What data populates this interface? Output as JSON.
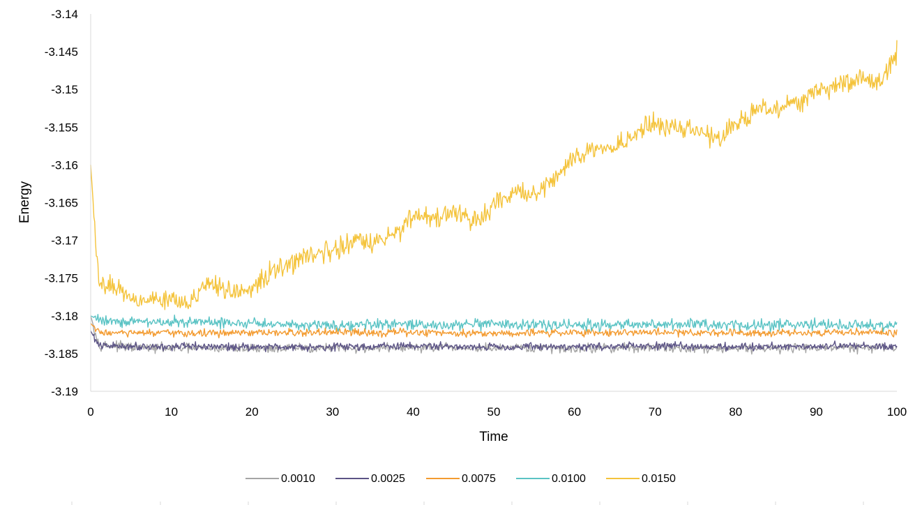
{
  "chart_data": {
    "type": "line",
    "title": "",
    "xlabel": "Time",
    "ylabel": "Energy",
    "xlim": [
      0,
      100
    ],
    "ylim": [
      -3.19,
      -3.14
    ],
    "x_ticks": [
      "0",
      "10",
      "20",
      "30",
      "40",
      "50",
      "60",
      "70",
      "80",
      "90",
      "100"
    ],
    "y_ticks": [
      "-3.14",
      "-3.145",
      "-3.15",
      "-3.155",
      "-3.16",
      "-3.165",
      "-3.17",
      "-3.175",
      "-3.18",
      "-3.185",
      "-3.19"
    ],
    "grid": false,
    "legend_position": "bottom",
    "series": [
      {
        "name": "0.0010",
        "color": "#a5a5a5",
        "x": [
          0,
          1,
          5,
          10,
          20,
          30,
          40,
          50,
          60,
          70,
          80,
          90,
          100
        ],
        "y": [
          -3.18,
          -3.1838,
          -3.1842,
          -3.1843,
          -3.1843,
          -3.1843,
          -3.1842,
          -3.1843,
          -3.1843,
          -3.1842,
          -3.1843,
          -3.1842,
          -3.1843
        ],
        "noise": 0.0006
      },
      {
        "name": "0.0025",
        "color": "#5b5385",
        "x": [
          0,
          1,
          5,
          10,
          20,
          30,
          40,
          50,
          60,
          70,
          80,
          90,
          100
        ],
        "y": [
          -3.182,
          -3.184,
          -3.184,
          -3.1841,
          -3.1841,
          -3.1841,
          -3.184,
          -3.1841,
          -3.1841,
          -3.184,
          -3.1841,
          -3.184,
          -3.184
        ],
        "noise": 0.0005
      },
      {
        "name": "0.0075",
        "color": "#f39b30",
        "x": [
          0,
          1,
          5,
          10,
          20,
          30,
          40,
          50,
          60,
          70,
          80,
          90,
          100
        ],
        "y": [
          -3.181,
          -3.1822,
          -3.1823,
          -3.1823,
          -3.1823,
          -3.1822,
          -3.1822,
          -3.1823,
          -3.1822,
          -3.1822,
          -3.1822,
          -3.1822,
          -3.1822
        ],
        "noise": 0.0005
      },
      {
        "name": "0.0100",
        "color": "#5ac3c4",
        "x": [
          0,
          1,
          5,
          10,
          20,
          30,
          40,
          50,
          60,
          70,
          80,
          90,
          100
        ],
        "y": [
          -3.18,
          -3.1805,
          -3.1808,
          -3.1808,
          -3.181,
          -3.1812,
          -3.1812,
          -3.1812,
          -3.1812,
          -3.1812,
          -3.1812,
          -3.1812,
          -3.1812
        ],
        "noise": 0.0007
      },
      {
        "name": "0.0150",
        "color": "#f4c33b",
        "x": [
          0,
          0.5,
          1,
          3,
          5,
          8,
          10,
          12,
          15,
          18,
          20,
          22,
          25,
          28,
          30,
          33,
          35,
          38,
          40,
          43,
          45,
          48,
          50,
          53,
          55,
          58,
          60,
          63,
          65,
          68,
          70,
          73,
          75,
          78,
          80,
          83,
          85,
          88,
          90,
          93,
          95,
          98,
          100
        ],
        "y": [
          -3.16,
          -3.168,
          -3.176,
          -3.176,
          -3.1775,
          -3.178,
          -3.1775,
          -3.178,
          -3.176,
          -3.177,
          -3.1765,
          -3.1745,
          -3.173,
          -3.1715,
          -3.1715,
          -3.17,
          -3.1705,
          -3.169,
          -3.1665,
          -3.167,
          -3.1665,
          -3.1675,
          -3.1655,
          -3.1635,
          -3.164,
          -3.1615,
          -3.159,
          -3.158,
          -3.1575,
          -3.1555,
          -3.1545,
          -3.155,
          -3.1555,
          -3.1565,
          -3.1545,
          -3.1525,
          -3.1525,
          -3.1515,
          -3.1505,
          -3.1495,
          -3.1485,
          -3.149,
          -3.145
        ],
        "noise": 0.0013
      }
    ]
  }
}
